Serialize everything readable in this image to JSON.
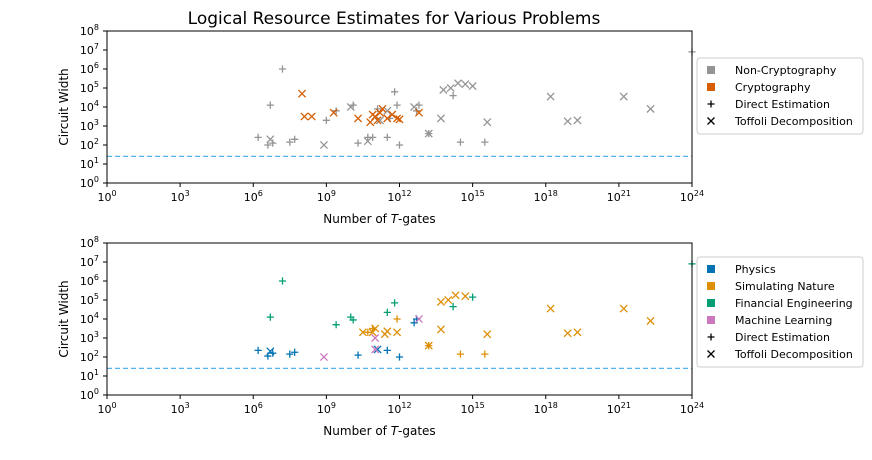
{
  "figure_title": "Logical Resource Estimates for Various Problems",
  "chart_data": [
    {
      "type": "scatter",
      "panel": "top",
      "xlabel_prefix": "Number of ",
      "xlabel_italic": "T",
      "xlabel_suffix": "-gates",
      "ylabel": "Circuit Width",
      "x_scale": "log10",
      "y_scale": "log10",
      "xlim_exp": [
        0,
        24
      ],
      "ylim_exp": [
        0,
        8
      ],
      "x_tick_exps": [
        0,
        3,
        6,
        9,
        12,
        15,
        18,
        21,
        24
      ],
      "y_tick_exps": [
        0,
        1,
        2,
        3,
        4,
        5,
        6,
        7,
        8
      ],
      "x_tick_labels": [
        "10^0",
        "10^3",
        "10^6",
        "10^9",
        "10^12",
        "10^15",
        "10^18",
        "10^21",
        "10^24"
      ],
      "y_tick_labels": [
        "10^0",
        "10^1",
        "10^2",
        "10^3",
        "10^4",
        "10^5",
        "10^6",
        "10^7",
        "10^8"
      ],
      "reference_line_exp": 1.4,
      "legend_position": "right",
      "legend": [
        {
          "label": "Non-Cryptography",
          "kind": "square",
          "color": "#949494"
        },
        {
          "label": "Cryptography",
          "kind": "square",
          "color": "#D55E00"
        },
        {
          "label": "Direct Estimation",
          "kind": "plus",
          "color": "#000000"
        },
        {
          "label": "Toffoli Decomposition",
          "kind": "cross",
          "color": "#000000"
        }
      ],
      "series": [
        {
          "name": "Non-Cryptography",
          "color": "#949494",
          "points": [
            {
              "x": 6.2,
              "y": 2.4,
              "m": "plus"
            },
            {
              "x": 6.7,
              "y": 4.1,
              "m": "plus"
            },
            {
              "x": 6.6,
              "y": 2.0,
              "m": "plus"
            },
            {
              "x": 6.8,
              "y": 2.1,
              "m": "plus"
            },
            {
              "x": 7.2,
              "y": 6.0,
              "m": "plus"
            },
            {
              "x": 7.5,
              "y": 2.15,
              "m": "plus"
            },
            {
              "x": 7.7,
              "y": 2.3,
              "m": "plus"
            },
            {
              "x": 9.0,
              "y": 3.3,
              "m": "plus"
            },
            {
              "x": 9.4,
              "y": 3.8,
              "m": "plus"
            },
            {
              "x": 10.1,
              "y": 4.1,
              "m": "plus"
            },
            {
              "x": 10.3,
              "y": 2.1,
              "m": "plus"
            },
            {
              "x": 10.7,
              "y": 2.4,
              "m": "plus"
            },
            {
              "x": 10.9,
              "y": 2.4,
              "m": "plus"
            },
            {
              "x": 11.1,
              "y": 3.9,
              "m": "plus"
            },
            {
              "x": 11.5,
              "y": 2.4,
              "m": "plus"
            },
            {
              "x": 11.6,
              "y": 3.4,
              "m": "plus"
            },
            {
              "x": 11.8,
              "y": 4.8,
              "m": "plus"
            },
            {
              "x": 11.9,
              "y": 4.1,
              "m": "plus"
            },
            {
              "x": 12.0,
              "y": 2.0,
              "m": "plus"
            },
            {
              "x": 12.7,
              "y": 3.8,
              "m": "plus"
            },
            {
              "x": 12.8,
              "y": 4.1,
              "m": "plus"
            },
            {
              "x": 13.2,
              "y": 2.6,
              "m": "plus"
            },
            {
              "x": 14.2,
              "y": 4.6,
              "m": "plus"
            },
            {
              "x": 14.5,
              "y": 2.15,
              "m": "plus"
            },
            {
              "x": 15.5,
              "y": 2.15,
              "m": "plus"
            },
            {
              "x": 24.0,
              "y": 6.9,
              "m": "plus"
            },
            {
              "x": 6.7,
              "y": 2.3,
              "m": "cross"
            },
            {
              "x": 8.9,
              "y": 2.0,
              "m": "cross"
            },
            {
              "x": 10.0,
              "y": 4.0,
              "m": "cross"
            },
            {
              "x": 10.7,
              "y": 2.2,
              "m": "cross"
            },
            {
              "x": 11.2,
              "y": 3.3,
              "m": "cross"
            },
            {
              "x": 11.5,
              "y": 3.8,
              "m": "cross"
            },
            {
              "x": 12.6,
              "y": 4.0,
              "m": "cross"
            },
            {
              "x": 13.2,
              "y": 2.6,
              "m": "cross"
            },
            {
              "x": 13.7,
              "y": 3.4,
              "m": "cross"
            },
            {
              "x": 13.8,
              "y": 4.9,
              "m": "cross"
            },
            {
              "x": 14.1,
              "y": 5.0,
              "m": "cross"
            },
            {
              "x": 14.4,
              "y": 5.25,
              "m": "cross"
            },
            {
              "x": 14.7,
              "y": 5.2,
              "m": "cross"
            },
            {
              "x": 15.0,
              "y": 5.1,
              "m": "cross"
            },
            {
              "x": 15.6,
              "y": 3.2,
              "m": "cross"
            },
            {
              "x": 18.2,
              "y": 4.55,
              "m": "cross"
            },
            {
              "x": 18.9,
              "y": 3.25,
              "m": "cross"
            },
            {
              "x": 19.3,
              "y": 3.3,
              "m": "cross"
            },
            {
              "x": 21.2,
              "y": 4.55,
              "m": "cross"
            },
            {
              "x": 22.3,
              "y": 3.9,
              "m": "cross"
            }
          ]
        },
        {
          "name": "Cryptography",
          "color": "#D55E00",
          "points": [
            {
              "x": 8.0,
              "y": 4.7,
              "m": "cross"
            },
            {
              "x": 8.1,
              "y": 3.5,
              "m": "cross"
            },
            {
              "x": 8.4,
              "y": 3.5,
              "m": "cross"
            },
            {
              "x": 9.3,
              "y": 3.7,
              "m": "cross"
            },
            {
              "x": 10.3,
              "y": 3.4,
              "m": "cross"
            },
            {
              "x": 10.8,
              "y": 3.2,
              "m": "cross"
            },
            {
              "x": 10.9,
              "y": 3.6,
              "m": "cross"
            },
            {
              "x": 11.0,
              "y": 3.5,
              "m": "cross"
            },
            {
              "x": 11.1,
              "y": 3.3,
              "m": "cross"
            },
            {
              "x": 11.2,
              "y": 3.7,
              "m": "cross"
            },
            {
              "x": 11.3,
              "y": 3.9,
              "m": "cross"
            },
            {
              "x": 11.5,
              "y": 3.4,
              "m": "cross"
            },
            {
              "x": 11.7,
              "y": 3.6,
              "m": "cross"
            },
            {
              "x": 11.9,
              "y": 3.4,
              "m": "cross"
            },
            {
              "x": 12.0,
              "y": 3.35,
              "m": "cross"
            },
            {
              "x": 12.8,
              "y": 3.7,
              "m": "cross"
            }
          ]
        }
      ]
    },
    {
      "type": "scatter",
      "panel": "bottom",
      "xlabel_prefix": "Number of ",
      "xlabel_italic": "T",
      "xlabel_suffix": "-gates",
      "ylabel": "Circuit Width",
      "x_scale": "log10",
      "y_scale": "log10",
      "xlim_exp": [
        0,
        24
      ],
      "ylim_exp": [
        0,
        8
      ],
      "x_tick_exps": [
        0,
        3,
        6,
        9,
        12,
        15,
        18,
        21,
        24
      ],
      "y_tick_exps": [
        0,
        1,
        2,
        3,
        4,
        5,
        6,
        7,
        8
      ],
      "x_tick_labels": [
        "10^0",
        "10^3",
        "10^6",
        "10^9",
        "10^12",
        "10^15",
        "10^18",
        "10^21",
        "10^24"
      ],
      "y_tick_labels": [
        "10^0",
        "10^1",
        "10^2",
        "10^3",
        "10^4",
        "10^5",
        "10^6",
        "10^7",
        "10^8"
      ],
      "reference_line_exp": 1.4,
      "legend_position": "right",
      "legend": [
        {
          "label": "Physics",
          "kind": "square",
          "color": "#0173B2"
        },
        {
          "label": "Simulating Nature",
          "kind": "square",
          "color": "#DE8F05"
        },
        {
          "label": "Financial Engineering",
          "kind": "square",
          "color": "#029E73"
        },
        {
          "label": "Machine Learning",
          "kind": "square",
          "color": "#CC78BC"
        },
        {
          "label": "Direct Estimation",
          "kind": "plus",
          "color": "#000000"
        },
        {
          "label": "Toffoli Decomposition",
          "kind": "cross",
          "color": "#000000"
        }
      ],
      "series": [
        {
          "name": "Physics",
          "color": "#0173B2",
          "points": [
            {
              "x": 6.2,
              "y": 2.35,
              "m": "plus"
            },
            {
              "x": 6.6,
              "y": 2.05,
              "m": "plus"
            },
            {
              "x": 6.8,
              "y": 2.2,
              "m": "plus"
            },
            {
              "x": 7.5,
              "y": 2.15,
              "m": "plus"
            },
            {
              "x": 7.7,
              "y": 2.25,
              "m": "plus"
            },
            {
              "x": 10.3,
              "y": 2.1,
              "m": "plus"
            },
            {
              "x": 11.5,
              "y": 2.35,
              "m": "plus"
            },
            {
              "x": 12.0,
              "y": 2.0,
              "m": "plus"
            },
            {
              "x": 12.6,
              "y": 3.8,
              "m": "plus"
            },
            {
              "x": 12.7,
              "y": 4.0,
              "m": "plus"
            },
            {
              "x": 6.7,
              "y": 2.3,
              "m": "cross"
            },
            {
              "x": 11.1,
              "y": 2.4,
              "m": "cross"
            }
          ]
        },
        {
          "name": "Simulating Nature",
          "color": "#DE8F05",
          "points": [
            {
              "x": 10.7,
              "y": 3.3,
              "m": "plus"
            },
            {
              "x": 10.9,
              "y": 3.5,
              "m": "plus"
            },
            {
              "x": 11.9,
              "y": 4.0,
              "m": "plus"
            },
            {
              "x": 13.2,
              "y": 2.6,
              "m": "plus"
            },
            {
              "x": 14.5,
              "y": 2.15,
              "m": "plus"
            },
            {
              "x": 15.5,
              "y": 2.15,
              "m": "plus"
            },
            {
              "x": 10.5,
              "y": 3.3,
              "m": "cross"
            },
            {
              "x": 10.9,
              "y": 3.3,
              "m": "cross"
            },
            {
              "x": 11.0,
              "y": 3.5,
              "m": "cross"
            },
            {
              "x": 11.4,
              "y": 3.2,
              "m": "cross"
            },
            {
              "x": 11.5,
              "y": 3.35,
              "m": "cross"
            },
            {
              "x": 11.9,
              "y": 3.3,
              "m": "cross"
            },
            {
              "x": 13.2,
              "y": 2.6,
              "m": "cross"
            },
            {
              "x": 13.7,
              "y": 3.45,
              "m": "cross"
            },
            {
              "x": 13.7,
              "y": 4.9,
              "m": "cross"
            },
            {
              "x": 14.0,
              "y": 5.0,
              "m": "cross"
            },
            {
              "x": 14.3,
              "y": 5.25,
              "m": "cross"
            },
            {
              "x": 14.7,
              "y": 5.2,
              "m": "cross"
            },
            {
              "x": 15.6,
              "y": 3.2,
              "m": "cross"
            },
            {
              "x": 18.2,
              "y": 4.55,
              "m": "cross"
            },
            {
              "x": 18.9,
              "y": 3.25,
              "m": "cross"
            },
            {
              "x": 19.3,
              "y": 3.3,
              "m": "cross"
            },
            {
              "x": 21.2,
              "y": 4.55,
              "m": "cross"
            },
            {
              "x": 22.3,
              "y": 3.9,
              "m": "cross"
            }
          ]
        },
        {
          "name": "Financial Engineering",
          "color": "#029E73",
          "points": [
            {
              "x": 7.2,
              "y": 6.0,
              "m": "plus"
            },
            {
              "x": 6.7,
              "y": 4.1,
              "m": "plus"
            },
            {
              "x": 9.4,
              "y": 3.7,
              "m": "plus"
            },
            {
              "x": 10.0,
              "y": 4.1,
              "m": "plus"
            },
            {
              "x": 10.1,
              "y": 3.95,
              "m": "plus"
            },
            {
              "x": 11.5,
              "y": 4.35,
              "m": "plus"
            },
            {
              "x": 11.8,
              "y": 4.85,
              "m": "plus"
            },
            {
              "x": 14.2,
              "y": 4.65,
              "m": "plus"
            },
            {
              "x": 15.0,
              "y": 5.15,
              "m": "plus"
            },
            {
              "x": 24.0,
              "y": 6.9,
              "m": "plus"
            }
          ]
        },
        {
          "name": "Machine Learning",
          "color": "#CC78BC",
          "points": [
            {
              "x": 8.9,
              "y": 2.0,
              "m": "cross"
            },
            {
              "x": 11.0,
              "y": 2.4,
              "m": "cross"
            },
            {
              "x": 11.0,
              "y": 3.0,
              "m": "cross"
            },
            {
              "x": 12.8,
              "y": 4.0,
              "m": "cross"
            }
          ]
        }
      ]
    }
  ]
}
